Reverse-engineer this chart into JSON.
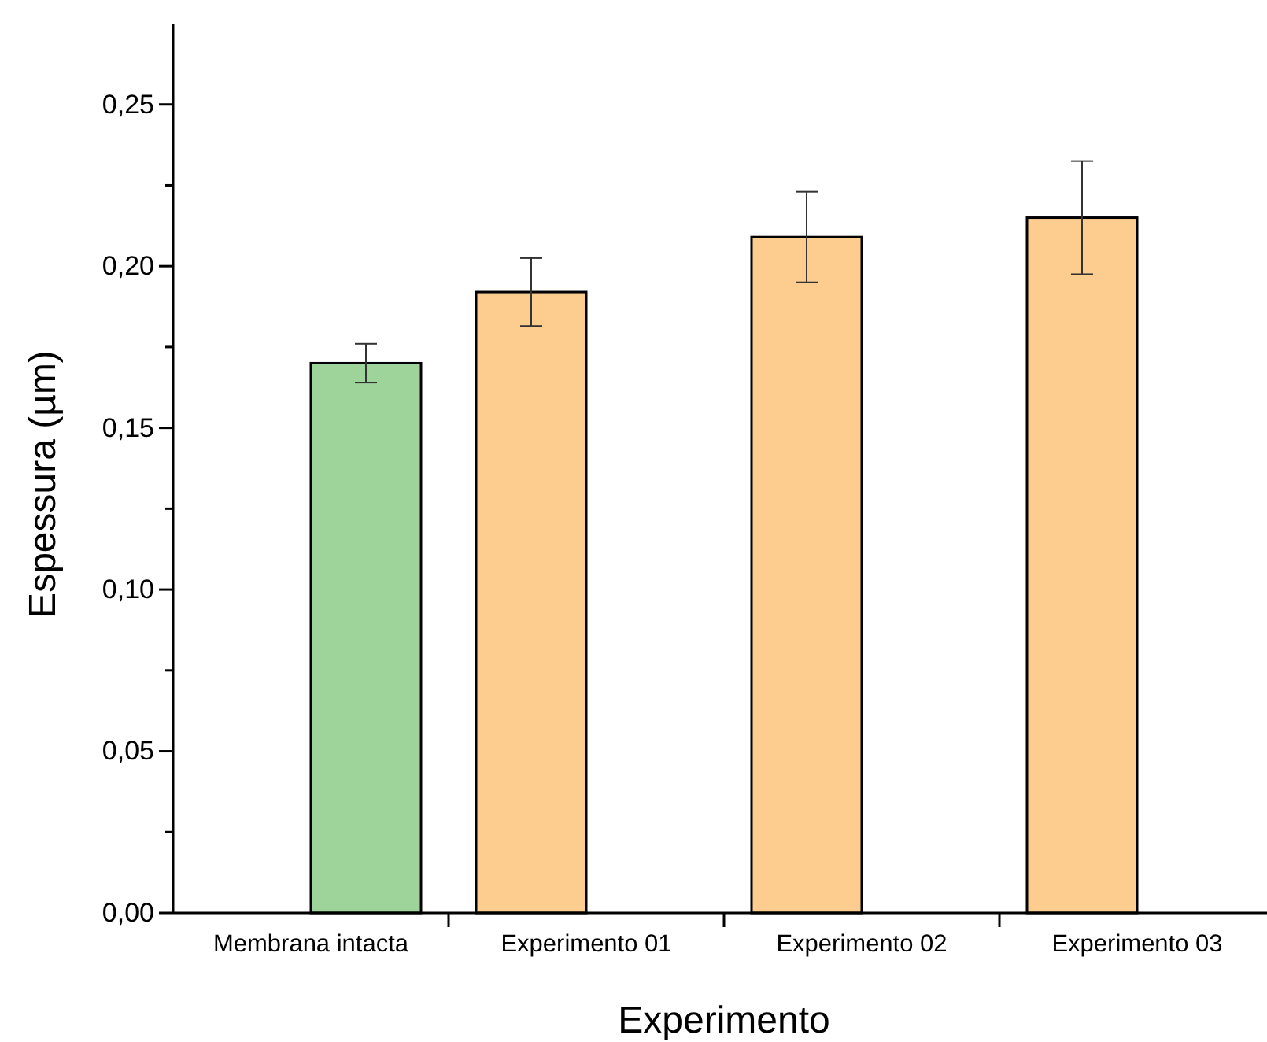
{
  "chart_data": {
    "type": "bar",
    "xlabel": "Experimento",
    "ylabel": "Espessura (µm)",
    "categories": [
      "Membrana intacta",
      "Experimento 01",
      "Experimento 02",
      "Experimento 03"
    ],
    "series": [
      {
        "color": "#fdcc8f",
        "values": [
          null,
          0.192,
          0.209,
          0.215
        ],
        "errors": [
          null,
          0.0105,
          0.014,
          0.0175
        ]
      },
      {
        "color": "#9ed49a",
        "values": [
          0.17,
          null,
          null,
          null
        ],
        "errors": [
          0.006,
          null,
          null,
          null
        ]
      }
    ],
    "ylim": [
      0,
      0.275
    ],
    "yticks": [
      {
        "value": 0,
        "label": "0,00"
      },
      {
        "value": 0.025,
        "label": null
      },
      {
        "value": 0.05,
        "label": "0,05"
      },
      {
        "value": 0.075,
        "label": null
      },
      {
        "value": 0.1,
        "label": "0,10"
      },
      {
        "value": 0.125,
        "label": null
      },
      {
        "value": 0.15,
        "label": "0,15"
      },
      {
        "value": 0.175,
        "label": null
      },
      {
        "value": 0.2,
        "label": "0,20"
      },
      {
        "value": 0.225,
        "label": null
      },
      {
        "value": 0.25,
        "label": "0,25"
      }
    ],
    "grid": false
  }
}
